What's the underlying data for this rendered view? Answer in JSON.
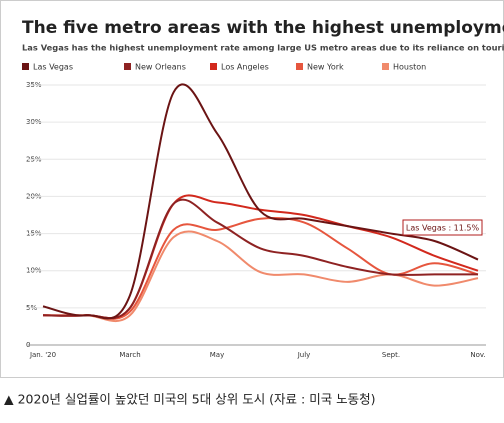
{
  "chart_data": {
    "type": "line",
    "title": "The five metro areas with the highest unemployment rates",
    "subtitle": "Las Vegas has the highest unemployment rate among large US metro areas due to its reliance on tourism.",
    "annotation": "Las Vegas : 11.5%",
    "categories": [
      "Jan. '20",
      null,
      "March",
      null,
      "May",
      null,
      "July",
      null,
      "Sept.",
      null,
      "Nov."
    ],
    "ylim": [
      0,
      35
    ],
    "yticks": [
      0,
      {
        "value": 5,
        "label": "5%"
      },
      {
        "value": 10,
        "label": "10%"
      },
      {
        "value": 15,
        "label": "15%"
      },
      {
        "value": 20,
        "label": "20%"
      },
      {
        "value": 25,
        "label": "25%"
      },
      {
        "value": 30,
        "label": "30%"
      },
      {
        "value": 35,
        "label": "35%"
      }
    ],
    "grid": true,
    "series": [
      {
        "name": "Las Vegas",
        "color": "#6b1414",
        "values": [
          5.2,
          4.0,
          6.7,
          34.0,
          28.5,
          18.0,
          17.0,
          16.0,
          15.0,
          14.0,
          11.5
        ]
      },
      {
        "name": "New Orleans",
        "color": "#8e2222",
        "values": [
          4.0,
          4.0,
          5.0,
          19.0,
          16.5,
          13.0,
          12.0,
          10.5,
          9.5,
          9.5,
          9.5
        ]
      },
      {
        "name": "Los Angeles",
        "color": "#d2291d",
        "values": [
          4.0,
          4.0,
          5.0,
          19.0,
          19.2,
          18.2,
          17.5,
          16.0,
          14.5,
          12.0,
          10.0
        ]
      },
      {
        "name": "New York",
        "color": "#e6563e",
        "values": [
          4.0,
          4.0,
          4.5,
          15.5,
          15.5,
          17.0,
          16.5,
          13.0,
          9.5,
          11.0,
          9.5
        ]
      },
      {
        "name": "Houston",
        "color": "#f08a6c",
        "values": [
          4.0,
          4.0,
          4.0,
          14.5,
          14.0,
          9.8,
          9.5,
          8.5,
          9.5,
          8.0,
          9.0
        ]
      }
    ]
  },
  "caption": "▲ 2020년 실업률이 높았던 미국의 5대 상위 도시 (자료 : 미국 노동청)"
}
